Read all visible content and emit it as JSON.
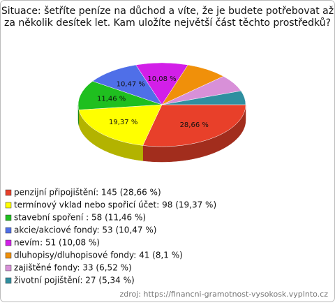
{
  "chart_data": {
    "type": "pie3d",
    "title": [
      "Situace: šetříte peníze na důchod a víte, že je budete potřebovat až",
      "za několik desítek let. Kam uložíte největší část těchto prostředků?"
    ],
    "categories": [
      "penzijní připojištění: 145 (28,66 %)",
      "termínový vklad nebo spořicí účet: 98 (19,37 %)",
      "stavební spoření : 58 (11,46 %)",
      "akcie/akciové fondy: 53 (10,47 %)",
      "nevím: 51 (10,08 %)",
      "dluhopisy/dluhopisové fondy: 41 (8,1 %)",
      "zajištěné fondy: 33 (6,52 %)",
      "životní pojištění: 27 (5,34 %)"
    ],
    "values": [
      28.66,
      19.37,
      11.46,
      10.47,
      10.08,
      8.1,
      6.52,
      5.34
    ],
    "value_labels": [
      "28,66 %",
      "19,37 %",
      "11,46 %",
      "10,47 %",
      "10,08 %",
      null,
      null,
      null
    ],
    "colors": [
      "#e8402a",
      "#ffff00",
      "#1fbf1f",
      "#4f6fe8",
      "#d21fe8",
      "#f0900a",
      "#d890d8",
      "#2f8fa0"
    ],
    "source": "zdroj: https://financni-gramotnost-vysokosk.vyplnto.cz"
  }
}
